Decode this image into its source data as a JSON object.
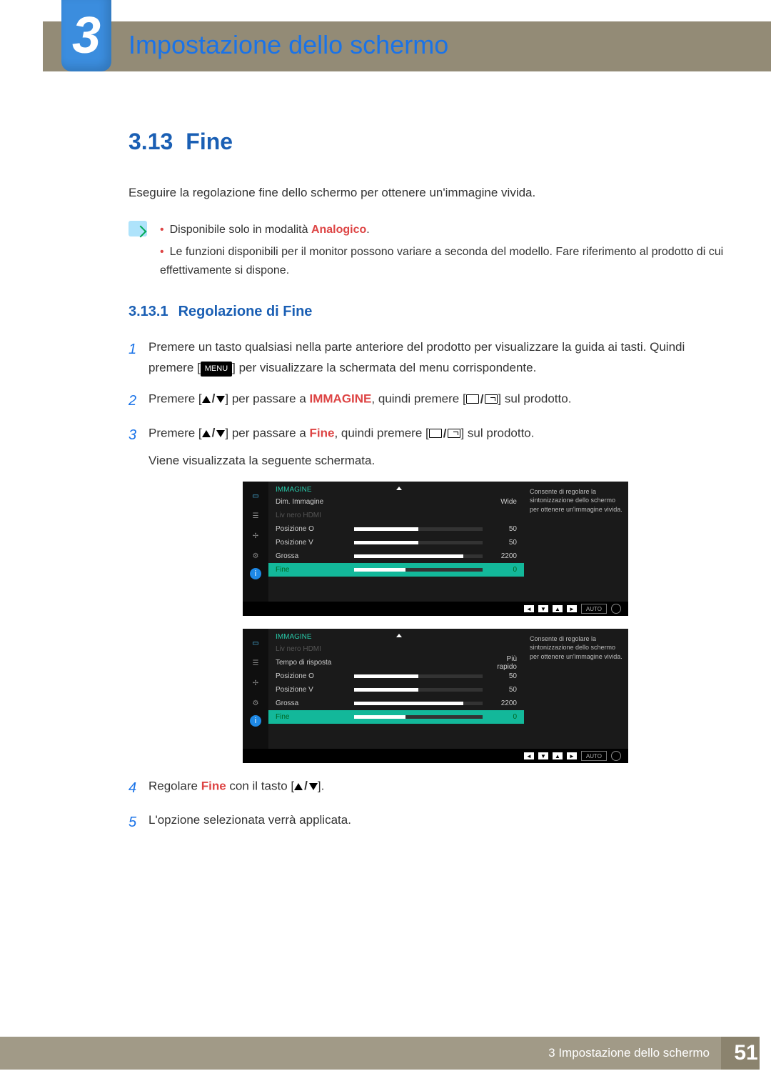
{
  "chapter": {
    "number": "3",
    "title": "Impostazione dello schermo"
  },
  "section": {
    "number": "3.13",
    "title": "Fine"
  },
  "intro": "Eseguire la regolazione fine dello schermo per ottenere un'immagine vivida.",
  "notes": [
    {
      "pre": "Disponibile solo in modalità ",
      "hl": "Analogico",
      "post": "."
    },
    {
      "pre": "Le funzioni disponibili per il monitor possono variare a seconda del modello. Fare riferimento al prodotto di cui effettivamente si dispone.",
      "hl": "",
      "post": ""
    }
  ],
  "subsection": {
    "number": "3.13.1",
    "title": "Regolazione di Fine"
  },
  "steps": [
    {
      "n": "1",
      "a": "Premere un tasto qualsiasi nella parte anteriore del prodotto per visualizzare la guida ai tasti. Quindi premere [",
      "menu": "MENU",
      "b": "] per visualizzare la schermata del menu corrispondente."
    },
    {
      "n": "2",
      "a": "Premere [",
      "b": "] per passare a ",
      "hl": "IMMAGINE",
      "c": ", quindi premere [",
      "d": "] sul prodotto."
    },
    {
      "n": "3",
      "a": "Premere [",
      "b": "] per passare a ",
      "hl": "Fine",
      "c": ", quindi premere [",
      "d": "] sul prodotto.",
      "tail": "Viene visualizzata la seguente schermata."
    },
    {
      "n": "4",
      "a": "Regolare ",
      "hl": "Fine",
      "b": " con il tasto [",
      "c": "]."
    },
    {
      "n": "5",
      "a": "L'opzione selezionata verrà applicata."
    }
  ],
  "osd": {
    "title": "IMMAGINE",
    "help": "Consente di regolare la sintonizzazione dello schermo per ottenere un'immagine vivida.",
    "foot_auto": "AUTO",
    "panel1": [
      {
        "label": "Dim. Immagine",
        "val": "Wide",
        "bar": null,
        "dim": false
      },
      {
        "label": "Liv nero HDMI",
        "val": "",
        "bar": null,
        "dim": true
      },
      {
        "label": "Posizione O",
        "val": "50",
        "bar": 50,
        "dim": false
      },
      {
        "label": "Posizione V",
        "val": "50",
        "bar": 50,
        "dim": false
      },
      {
        "label": "Grossa",
        "val": "2200",
        "bar": 85,
        "dim": false
      },
      {
        "label": "Fine",
        "val": "0",
        "bar": 40,
        "dim": false,
        "sel": true
      }
    ],
    "panel2": [
      {
        "label": "Liv nero HDMI",
        "val": "",
        "bar": null,
        "dim": true
      },
      {
        "label": "Tempo di risposta",
        "val": "Più rapido",
        "bar": null,
        "dim": false
      },
      {
        "label": "Posizione O",
        "val": "50",
        "bar": 50,
        "dim": false
      },
      {
        "label": "Posizione V",
        "val": "50",
        "bar": 50,
        "dim": false
      },
      {
        "label": "Grossa",
        "val": "2200",
        "bar": 85,
        "dim": false
      },
      {
        "label": "Fine",
        "val": "0",
        "bar": 40,
        "dim": false,
        "sel": true
      }
    ]
  },
  "footer": {
    "text": "3 Impostazione dello schermo",
    "page": "51"
  }
}
